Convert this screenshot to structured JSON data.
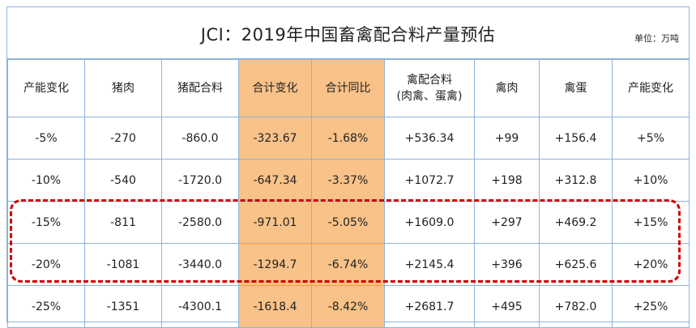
{
  "title": "JCI：2019年中国畜禽配合料产量预估",
  "unit": "单位：万吨",
  "headers": [
    {
      "lines": [
        "产能变化"
      ]
    },
    {
      "lines": [
        "猪肉"
      ]
    },
    {
      "lines": [
        "猪配合料"
      ]
    },
    {
      "lines": [
        "合计变化"
      ]
    },
    {
      "lines": [
        "合计同比"
      ]
    },
    {
      "lines": [
        "禽配合料",
        "(肉禽、蛋禽)"
      ]
    },
    {
      "lines": [
        "禽肉"
      ]
    },
    {
      "lines": [
        "禽蛋"
      ]
    },
    {
      "lines": [
        "产能变化"
      ]
    }
  ],
  "highlight_color": "#f8c288",
  "rows": [
    [
      "-5%",
      "-270",
      "-860.0",
      "-323.67",
      "-1.68%",
      "+536.34",
      "+99",
      "+156.4",
      "+5%"
    ],
    [
      "-10%",
      "-540",
      "-1720.0",
      "-647.34",
      "-3.37%",
      "+1072.7",
      "+198",
      "+312.8",
      "+10%"
    ],
    [
      "-15%",
      "-811",
      "-2580.0",
      "-971.01",
      "-5.05%",
      "+1609.0",
      "+297",
      "+469.2",
      "+15%"
    ],
    [
      "-20%",
      "-1081",
      "-3440.0",
      "-1294.7",
      "-6.74%",
      "+2145.4",
      "+396",
      "+625.6",
      "+20%"
    ],
    [
      "-25%",
      "-1351",
      "-4300.1",
      "-1618.4",
      "-8.42%",
      "+2681.7",
      "+495",
      "+782.0",
      "+25%"
    ]
  ]
}
